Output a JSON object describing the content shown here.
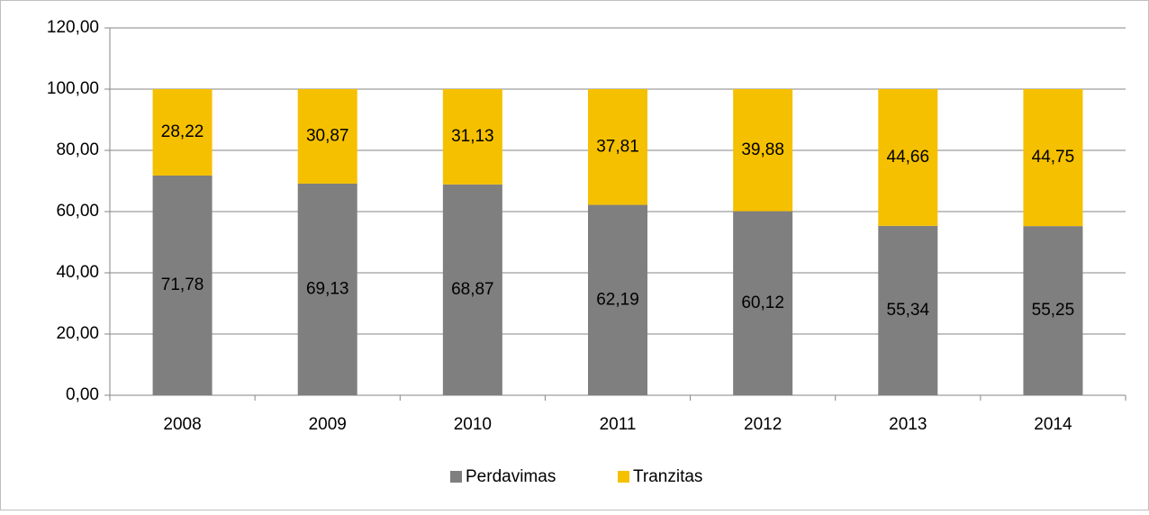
{
  "chart_data": {
    "type": "stacked_bar",
    "categories": [
      "2008",
      "2009",
      "2010",
      "2011",
      "2012",
      "2013",
      "2014"
    ],
    "series": [
      {
        "name": "Perdavimas",
        "color": "#7f7f7f",
        "values": [
          71.78,
          69.13,
          68.87,
          62.19,
          60.12,
          55.34,
          55.25
        ],
        "value_labels": [
          "71,78",
          "69,13",
          "68,87",
          "62,19",
          "60,12",
          "55,34",
          "55,25"
        ]
      },
      {
        "name": "Tranzitas",
        "color": "#f5c000",
        "values": [
          28.22,
          30.87,
          31.13,
          37.81,
          39.88,
          44.66,
          44.75
        ],
        "value_labels": [
          "28,22",
          "30,87",
          "31,13",
          "37,81",
          "39,88",
          "44,66",
          "44,75"
        ]
      }
    ],
    "ylim": [
      0,
      120
    ],
    "yticks": [
      {
        "value": 0,
        "label": "0,00"
      },
      {
        "value": 20,
        "label": "20,00"
      },
      {
        "value": 40,
        "label": "40,00"
      },
      {
        "value": 60,
        "label": "60,00"
      },
      {
        "value": 80,
        "label": "80,00"
      },
      {
        "value": 100,
        "label": "100,00"
      },
      {
        "value": 120,
        "label": "120,00"
      }
    ],
    "grid": true,
    "legend": "bottom"
  }
}
